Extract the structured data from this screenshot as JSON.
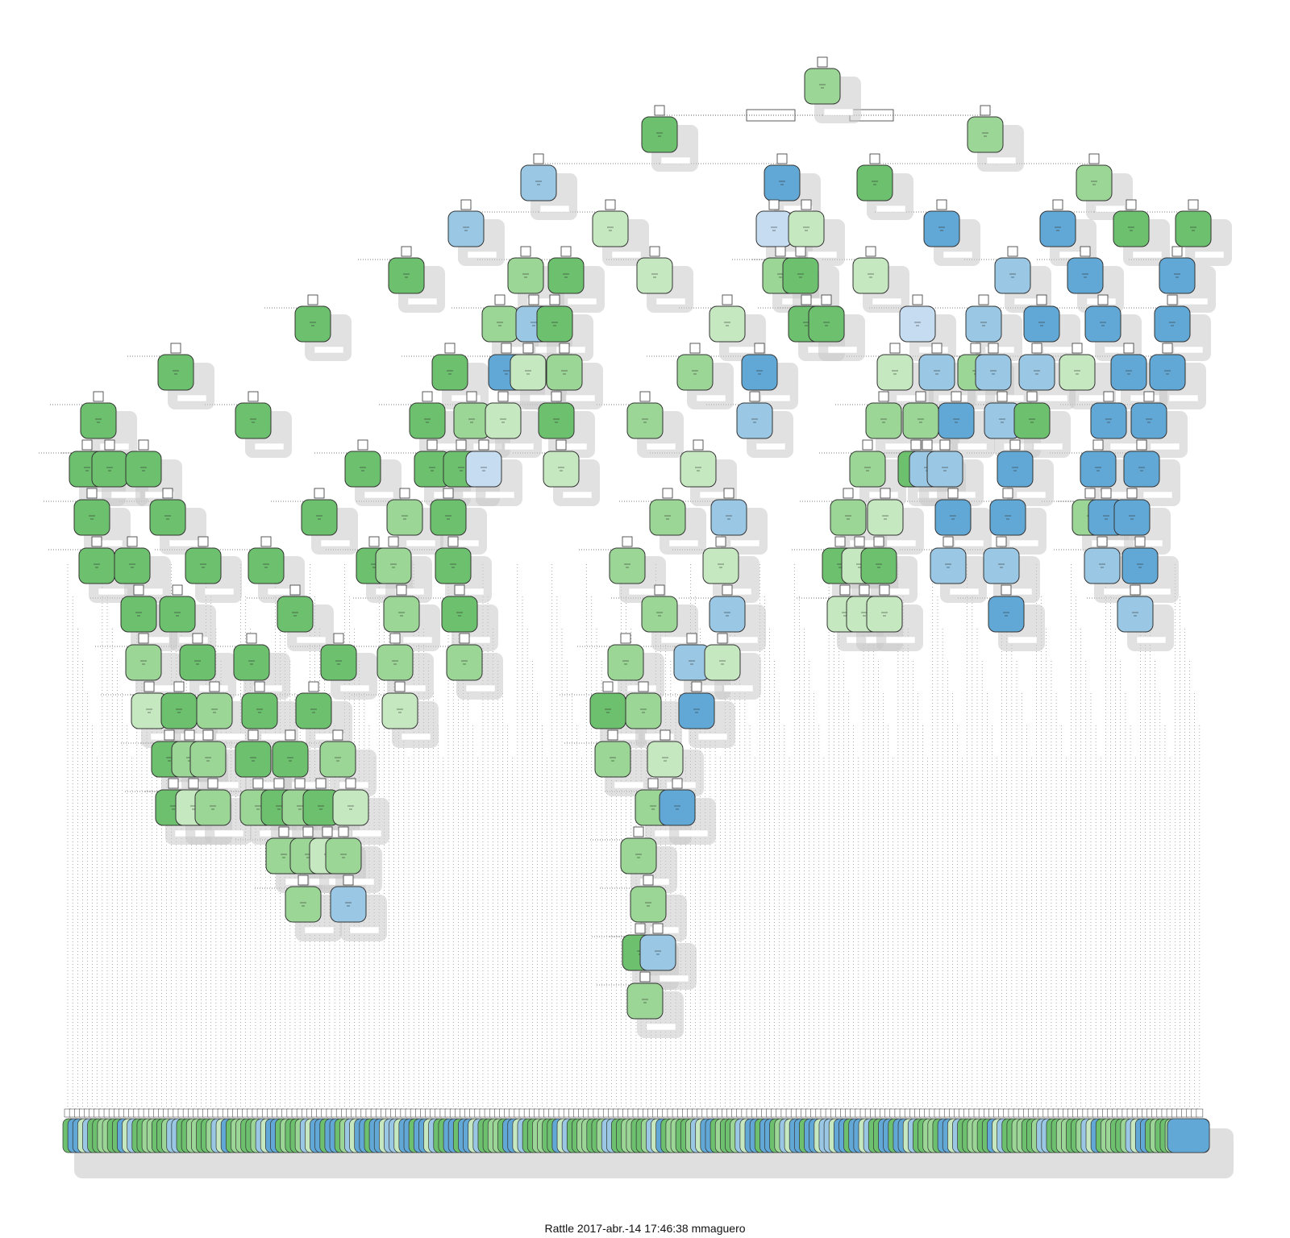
{
  "caption": "Rattle 2017-abr.-14 17:46:38 mmaguero",
  "colors": {
    "g1": "#6cc06e",
    "g2": "#9bd696",
    "g3": "#c6e8c0",
    "b1": "#62a8d6",
    "b2": "#9ac8e4",
    "b3": "#c6dcf1",
    "shadow": "#c9c9c9",
    "edge": "#555555"
  },
  "tree": {
    "root": "g2",
    "internal": [
      [
        "g1",
        "g2"
      ],
      [
        "b2",
        "b1"
      ],
      [
        "g1",
        "g2"
      ],
      [
        "b2",
        "g3"
      ],
      [
        "b3",
        "g3"
      ],
      [
        "b1",
        "b1"
      ],
      [
        "g1",
        "g1"
      ],
      [
        "g2",
        "g1"
      ],
      [
        "g1",
        "g1"
      ],
      [
        "g3",
        "g2"
      ],
      [
        "b2",
        "b2"
      ],
      [
        "b1",
        "b2"
      ],
      [
        "g3",
        "b1"
      ],
      [
        "b1",
        "b2"
      ],
      [
        "g1",
        "g2"
      ],
      [
        "b1",
        "g3"
      ],
      [
        "g2",
        "g2"
      ],
      [
        "g1",
        "g2"
      ],
      [
        "b2",
        "b1"
      ],
      [
        "b3",
        "b2"
      ],
      [
        "b1",
        "b2"
      ],
      [
        "b1",
        "b1"
      ]
    ],
    "leaf_pattern": [
      "g1",
      "g2",
      "b1",
      "g1",
      "b2",
      "g3",
      "g1",
      "b1",
      "g2",
      "b1",
      "g1",
      "g3",
      "b2",
      "g2",
      "b1",
      "g1"
    ]
  }
}
